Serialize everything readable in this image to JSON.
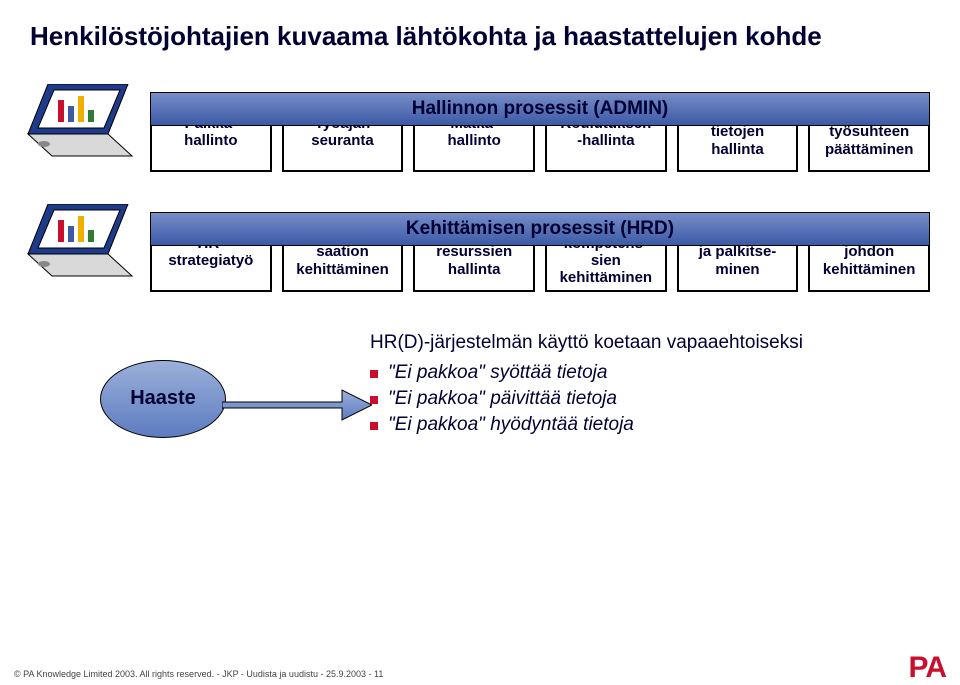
{
  "title": "Henkilöstöjohtajien kuvaama lähtökohta ja haastattelujen kohde",
  "colors": {
    "bar_gradient_top": "#778dc8",
    "bar_gradient_bottom": "#3c5aa6",
    "haaste_gradient_top": "#9bb0da",
    "haaste_gradient_bottom": "#5d7cc0",
    "box_border": "#000000",
    "text": "#000033",
    "bullet": "#c8102e",
    "logo": "#c8102e",
    "background": "#ffffff"
  },
  "admin": {
    "bar_label": "Hallinnon prosessit (ADMIN)",
    "boxes": [
      "Palkka-\nhallinto",
      "Työajan\nseuranta",
      "Matka-\nhallinto",
      "Koulutuksen\n-hallinta",
      "Henkilö-\ntietojen\nhallinta",
      "Perehdytys/\ntyösuhteen\npäättäminen"
    ]
  },
  "hrd": {
    "bar_label": "Kehittämisen prosessit (HRD)",
    "boxes": [
      "HR-\nstrategiatyö",
      "Organi-\nsaation\nkehittäminen",
      "Henkilö-\nresurssien\nhallinta",
      "Koulutus ja\nkompetens-\nsien\nkehittäminen",
      "Suoritukset\nja palkitse-\nminen",
      "Esimiesten ja\njohdon\nkehittäminen"
    ]
  },
  "haaste": {
    "label": "Haaste",
    "lead": "HR(D)-järjestelmän käyttö koetaan vapaaehtoiseksi",
    "bullets": [
      "Ei pakkoa\" syöttää tietoja",
      "Ei pakkoa\" päivittää tietoja",
      "Ei pakkoa\" hyödyntää tietoja"
    ]
  },
  "footer": {
    "copyright": "© PA Knowledge Limited 2003. All rights reserved. - JKP - Uudista ja uudistu - 25.9.2003 - 11",
    "logo": "PA"
  }
}
